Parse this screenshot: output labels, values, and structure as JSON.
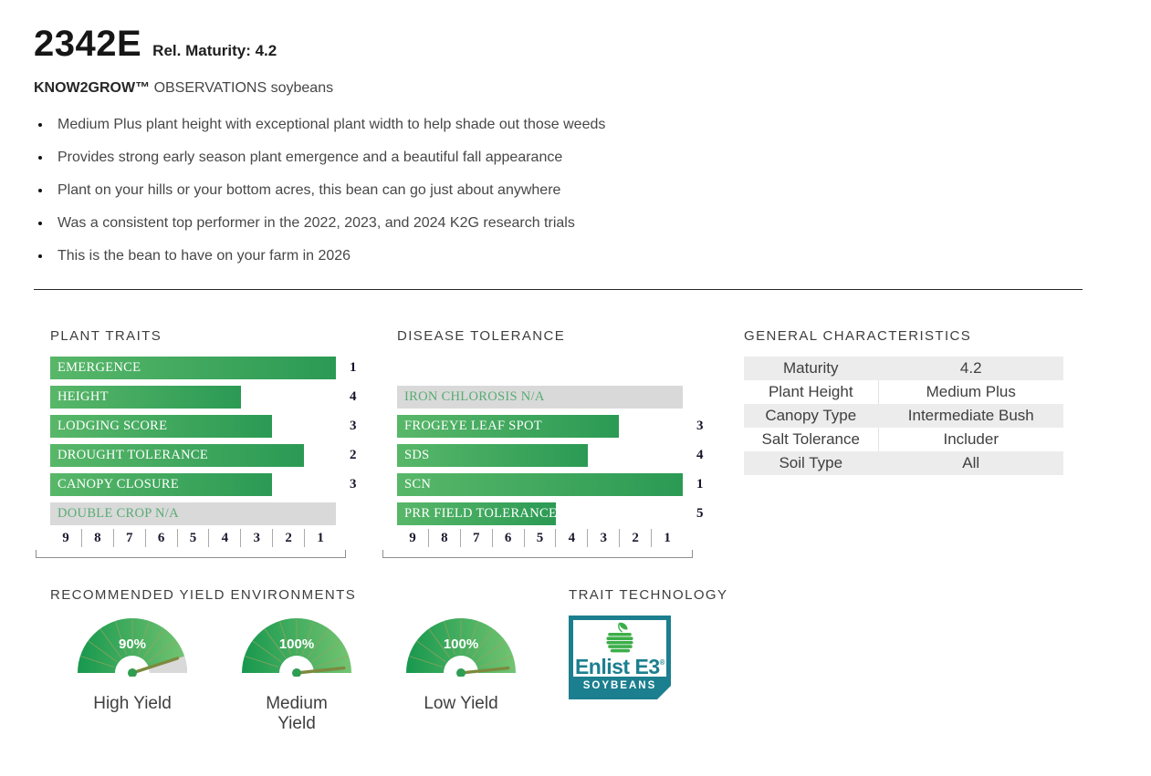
{
  "header": {
    "product": "2342E",
    "maturity_label": "Rel. Maturity: 4.2",
    "brand_program": "KNOW2GROW™",
    "subtitle_rest": "OBSERVATIONS soybeans"
  },
  "bullets": [
    "Medium Plus plant height with exceptional plant width to help shade out those weeds",
    "Provides strong early season plant emergence and a beautiful fall appearance",
    "Plant on your hills or your bottom acres, this bean can go just about anywhere",
    "Was a consistent top performer in the 2022, 2023, and 2024 K2G research trials",
    "This is the bean to have on your farm in 2026"
  ],
  "general_characteristics": {
    "title": "GENERAL CHARACTERISTICS",
    "rows": [
      {
        "label": "Maturity",
        "value": "4.2"
      },
      {
        "label": "Plant Height",
        "value": "Medium Plus"
      },
      {
        "label": "Canopy Type",
        "value": "Intermediate Bush"
      },
      {
        "label": "Salt Tolerance",
        "value": "Includer"
      },
      {
        "label": "Soil Type",
        "value": "All"
      }
    ]
  },
  "trait_technology": {
    "title": "TRAIT TECHNOLOGY",
    "logo": {
      "brand": "Enlist E3",
      "reg": "®",
      "sub": "SOYBEANS"
    }
  },
  "chart_data": [
    {
      "type": "bar",
      "title": "PLANT TRAITS",
      "orientation": "horizontal",
      "axis": {
        "ticks": [
          9,
          8,
          7,
          6,
          5,
          4,
          3,
          2,
          1
        ],
        "note": "scale 9 (low) to 1 (high); bars extend toward 1"
      },
      "categories": [
        "EMERGENCE",
        "HEIGHT",
        "LODGING SCORE",
        "DROUGHT TOLERANCE",
        "CANOPY CLOSURE",
        "DOUBLE CROP N/A"
      ],
      "values": [
        1,
        4,
        3,
        2,
        3,
        null
      ]
    },
    {
      "type": "bar",
      "title": "DISEASE TOLERANCE",
      "orientation": "horizontal",
      "axis": {
        "ticks": [
          9,
          8,
          7,
          6,
          5,
          4,
          3,
          2,
          1
        ],
        "note": "scale 9 (low) to 1 (high); bars extend toward 1"
      },
      "categories": [
        "IRON CHLOROSIS N/A",
        "FROGEYE LEAF SPOT",
        "SDS",
        "SCN",
        "PRR FIELD TOLERANCE"
      ],
      "values": [
        null,
        3,
        4,
        1,
        5
      ]
    },
    {
      "type": "gauge",
      "title": "RECOMMENDED YIELD ENVIRONMENTS",
      "gauges": [
        {
          "label": "High Yield",
          "percent": 90
        },
        {
          "label": "Medium Yield",
          "percent": 100
        },
        {
          "label": "Low Yield",
          "percent": 100
        }
      ]
    }
  ],
  "colors": {
    "bar_gradient_left": "#58b769",
    "bar_gradient_right": "#2b9a54",
    "na_bar_gray": "#d9d9d9",
    "na_text_green": "#58ab73",
    "gauge_gradient_left": "#17984e",
    "gauge_gradient_right": "#74c472",
    "gauge_remainder_gray": "#d9d9d9",
    "needle_olive": "#7d8a3e",
    "hub_green": "#2f9e52",
    "enlist_teal": "#1b7f8f",
    "enlist_green": "#3cae49",
    "table_stripe": "#ececec"
  }
}
